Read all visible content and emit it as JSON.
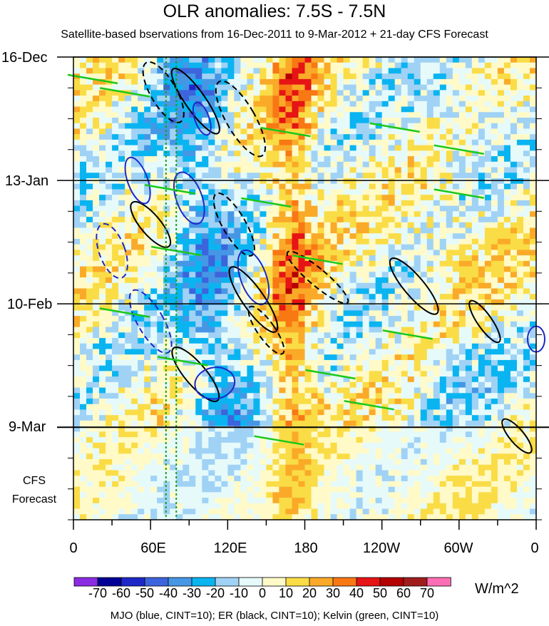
{
  "chart_data": {
    "type": "heatmap",
    "title": "OLR anomalies: 7.5S - 7.5N",
    "subtitle": "Satellite-based bservations from 16-Dec-2011 to 9-Mar-2012 + 21-day CFS Forecast",
    "x_ticks": [
      "0",
      "60E",
      "120E",
      "180",
      "120W",
      "60W",
      "0"
    ],
    "x_tick_lon": [
      0,
      60,
      120,
      180,
      240,
      300,
      360
    ],
    "xlim": [
      0,
      360
    ],
    "y_ticks": [
      "16-Dec",
      "13-Jan",
      "10-Feb",
      "9-Mar"
    ],
    "y_tick_day": [
      0,
      28,
      56,
      84
    ],
    "ylim_days": [
      0,
      105
    ],
    "observation_end_label": "9-Mar",
    "forecast_label_line1": "CFS",
    "forecast_label_line2": "Forecast",
    "reference_lines_lon": [
      72,
      80
    ],
    "colorbar": {
      "labels": [
        "-70",
        "-60",
        "-50",
        "-40",
        "-30",
        "-20",
        "-10",
        "0",
        "10",
        "20",
        "30",
        "40",
        "50",
        "60",
        "70"
      ],
      "colors": [
        "#8b2be2",
        "#000096",
        "#1e28c8",
        "#3c64dc",
        "#4696e6",
        "#0ab4f0",
        "#a0d2f5",
        "#e6fafa",
        "#fffac8",
        "#fadc46",
        "#faaa28",
        "#f87814",
        "#e61414",
        "#b40000",
        "#a01e1e",
        "#ff6eb4"
      ],
      "units": "W/m^2"
    },
    "contour_legend": "MJO (blue, CINT=10); ER (black, CINT=10); Kelvin (green, CINT=10)",
    "contour_colors": {
      "MJO": "#1e28c8",
      "ER": "#000000",
      "Kelvin": "#19c819"
    }
  }
}
